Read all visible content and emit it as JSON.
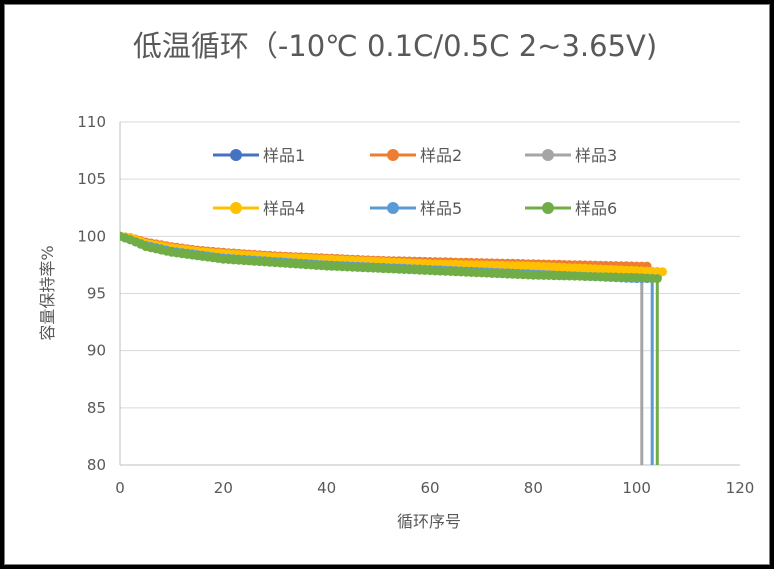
{
  "chart_data": {
    "type": "line",
    "title": "低温循环（-10℃ 0.1C/0.5C 2~3.65V)",
    "xlabel": "循环序号",
    "ylabel": "容量保持率%",
    "xlim": [
      0,
      120
    ],
    "ylim": [
      80,
      110
    ],
    "xticks": [
      0,
      20,
      40,
      60,
      80,
      100,
      120
    ],
    "yticks": [
      80,
      85,
      90,
      95,
      100,
      105,
      110
    ],
    "grid": "horizontal",
    "legend": "inside-top",
    "series": [
      {
        "name": "样品1",
        "color": "#4472C4",
        "last_x": 104,
        "end_drop": false,
        "x": [
          0,
          2,
          5,
          10,
          15,
          20,
          30,
          40,
          50,
          60,
          70,
          80,
          90,
          100,
          104
        ],
        "y": [
          100,
          99.8,
          99.3,
          98.8,
          98.5,
          98.2,
          97.9,
          97.6,
          97.4,
          97.2,
          97.0,
          96.8,
          96.6,
          96.4,
          96.4
        ]
      },
      {
        "name": "样品2",
        "color": "#ED7D31",
        "last_x": 102,
        "end_drop": false,
        "x": [
          0,
          2,
          5,
          10,
          15,
          20,
          30,
          40,
          50,
          60,
          70,
          80,
          90,
          100,
          102
        ],
        "y": [
          100,
          99.9,
          99.5,
          99.1,
          98.8,
          98.6,
          98.3,
          98.1,
          97.9,
          97.8,
          97.7,
          97.6,
          97.5,
          97.4,
          97.4
        ]
      },
      {
        "name": "样品3",
        "color": "#A5A5A5",
        "last_x": 101,
        "end_drop": true,
        "x": [
          0,
          2,
          5,
          10,
          15,
          20,
          30,
          40,
          50,
          60,
          70,
          80,
          90,
          100,
          101
        ],
        "y": [
          100,
          99.8,
          99.3,
          98.8,
          98.5,
          98.2,
          97.9,
          97.6,
          97.4,
          97.2,
          97.0,
          96.8,
          96.6,
          96.4,
          96.4
        ]
      },
      {
        "name": "样品4",
        "color": "#FFC000",
        "last_x": 105,
        "end_drop": false,
        "x": [
          0,
          2,
          5,
          10,
          15,
          20,
          30,
          40,
          50,
          60,
          70,
          80,
          90,
          100,
          105
        ],
        "y": [
          100,
          99.9,
          99.4,
          99.0,
          98.7,
          98.5,
          98.2,
          98.0,
          97.8,
          97.6,
          97.5,
          97.4,
          97.2,
          97.0,
          96.9
        ]
      },
      {
        "name": "样品5",
        "color": "#5B9BD5",
        "last_x": 103,
        "end_drop": true,
        "x": [
          0,
          2,
          5,
          10,
          15,
          20,
          30,
          40,
          50,
          60,
          70,
          80,
          90,
          100,
          103
        ],
        "y": [
          100,
          99.7,
          99.2,
          98.7,
          98.4,
          98.1,
          97.8,
          97.5,
          97.3,
          97.1,
          96.9,
          96.7,
          96.5,
          96.3,
          96.3
        ]
      },
      {
        "name": "样品6",
        "color": "#70AD47",
        "last_x": 104,
        "end_drop": true,
        "x": [
          0,
          2,
          5,
          10,
          15,
          20,
          30,
          40,
          50,
          60,
          70,
          80,
          90,
          100,
          104
        ],
        "y": [
          100,
          99.7,
          99.1,
          98.6,
          98.3,
          98.0,
          97.7,
          97.4,
          97.2,
          97.0,
          96.8,
          96.6,
          96.5,
          96.4,
          96.3
        ]
      }
    ]
  }
}
